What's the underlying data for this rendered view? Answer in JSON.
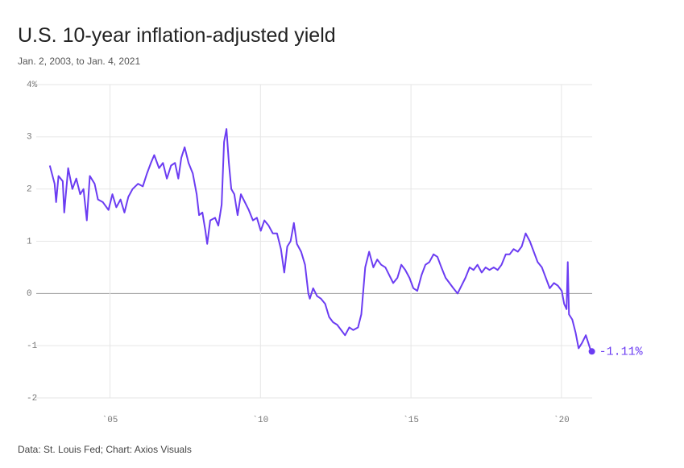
{
  "chart_data": {
    "type": "line",
    "title": "U.S. 10-year inflation-adjusted yield",
    "subtitle": "Jan. 2, 2003, to Jan. 4, 2021",
    "source": "Data: St. Louis Fed; Chart: Axios Visuals",
    "xlim": [
      2002.55,
      2021.02
    ],
    "ylim": [
      -2,
      4
    ],
    "xticks": [
      {
        "value": 2005,
        "label": "`05"
      },
      {
        "value": 2010,
        "label": "`10"
      },
      {
        "value": 2015,
        "label": "`15"
      },
      {
        "value": 2020,
        "label": "`20"
      }
    ],
    "yticks": [
      {
        "value": 4,
        "label": "4%"
      },
      3,
      2,
      1,
      0,
      -1,
      -2
    ],
    "grid": true,
    "x": [
      2003.0,
      2003.16,
      2003.21,
      2003.29,
      2003.43,
      2003.48,
      2003.61,
      2003.75,
      2003.88,
      2004.01,
      2004.12,
      2004.23,
      2004.33,
      2004.49,
      2004.6,
      2004.76,
      2004.95,
      2005.08,
      2005.21,
      2005.35,
      2005.48,
      2005.61,
      2005.75,
      2005.93,
      2006.09,
      2006.23,
      2006.36,
      2006.47,
      2006.63,
      2006.76,
      2006.89,
      2007.03,
      2007.16,
      2007.27,
      2007.37,
      2007.48,
      2007.61,
      2007.75,
      2007.88,
      2007.96,
      2008.07,
      2008.17,
      2008.23,
      2008.33,
      2008.49,
      2008.6,
      2008.71,
      2008.79,
      2008.87,
      2008.95,
      2009.03,
      2009.13,
      2009.24,
      2009.35,
      2009.48,
      2009.61,
      2009.75,
      2009.88,
      2010.01,
      2010.13,
      2010.27,
      2010.41,
      2010.55,
      2010.68,
      2010.79,
      2010.89,
      2011.0,
      2011.11,
      2011.21,
      2011.35,
      2011.48,
      2011.59,
      2011.64,
      2011.75,
      2011.88,
      2012.01,
      2012.15,
      2012.28,
      2012.41,
      2012.55,
      2012.68,
      2012.81,
      2012.95,
      2013.08,
      2013.24,
      2013.35,
      2013.48,
      2013.61,
      2013.75,
      2013.88,
      2014.01,
      2014.15,
      2014.28,
      2014.41,
      2014.55,
      2014.68,
      2014.81,
      2014.95,
      2015.08,
      2015.21,
      2015.35,
      2015.48,
      2015.61,
      2015.75,
      2015.88,
      2016.01,
      2016.15,
      2016.28,
      2016.41,
      2016.55,
      2016.68,
      2016.81,
      2016.95,
      2017.08,
      2017.21,
      2017.35,
      2017.48,
      2017.61,
      2017.75,
      2017.88,
      2018.01,
      2018.15,
      2018.28,
      2018.41,
      2018.55,
      2018.68,
      2018.81,
      2018.95,
      2019.08,
      2019.21,
      2019.35,
      2019.48,
      2019.61,
      2019.75,
      2019.88,
      2020.01,
      2020.09,
      2020.17,
      2020.21,
      2020.25,
      2020.36,
      2020.47,
      2020.57,
      2020.68,
      2020.81,
      2020.95,
      2021.01
    ],
    "series": [
      {
        "name": "10-year inflation-adjusted yield",
        "color": "#6b3cf2",
        "values": [
          2.45,
          2.1,
          1.75,
          2.25,
          2.15,
          1.55,
          2.4,
          2.0,
          2.2,
          1.9,
          2.0,
          1.4,
          2.25,
          2.1,
          1.8,
          1.75,
          1.6,
          1.9,
          1.65,
          1.8,
          1.55,
          1.85,
          2.0,
          2.1,
          2.05,
          2.3,
          2.5,
          2.65,
          2.4,
          2.5,
          2.2,
          2.45,
          2.5,
          2.2,
          2.6,
          2.8,
          2.5,
          2.3,
          1.9,
          1.5,
          1.55,
          1.2,
          0.95,
          1.4,
          1.45,
          1.3,
          1.7,
          2.9,
          3.15,
          2.5,
          2.0,
          1.9,
          1.5,
          1.9,
          1.75,
          1.6,
          1.4,
          1.45,
          1.2,
          1.4,
          1.3,
          1.15,
          1.15,
          0.85,
          0.4,
          0.9,
          1.0,
          1.35,
          0.95,
          0.8,
          0.55,
          0.0,
          -0.1,
          0.1,
          -0.05,
          -0.1,
          -0.2,
          -0.45,
          -0.55,
          -0.6,
          -0.7,
          -0.8,
          -0.65,
          -0.7,
          -0.65,
          -0.4,
          0.5,
          0.8,
          0.5,
          0.65,
          0.55,
          0.5,
          0.35,
          0.2,
          0.3,
          0.55,
          0.45,
          0.3,
          0.1,
          0.05,
          0.35,
          0.55,
          0.6,
          0.75,
          0.7,
          0.5,
          0.3,
          0.2,
          0.1,
          0.0,
          0.15,
          0.3,
          0.5,
          0.45,
          0.55,
          0.4,
          0.5,
          0.45,
          0.5,
          0.45,
          0.55,
          0.75,
          0.75,
          0.85,
          0.8,
          0.9,
          1.15,
          1.0,
          0.8,
          0.6,
          0.5,
          0.3,
          0.1,
          0.2,
          0.15,
          0.05,
          -0.2,
          -0.3,
          0.6,
          -0.4,
          -0.5,
          -0.75,
          -1.05,
          -0.95,
          -0.8,
          -1.05,
          -1.11
        ]
      }
    ],
    "end_label": "-1.11%"
  }
}
